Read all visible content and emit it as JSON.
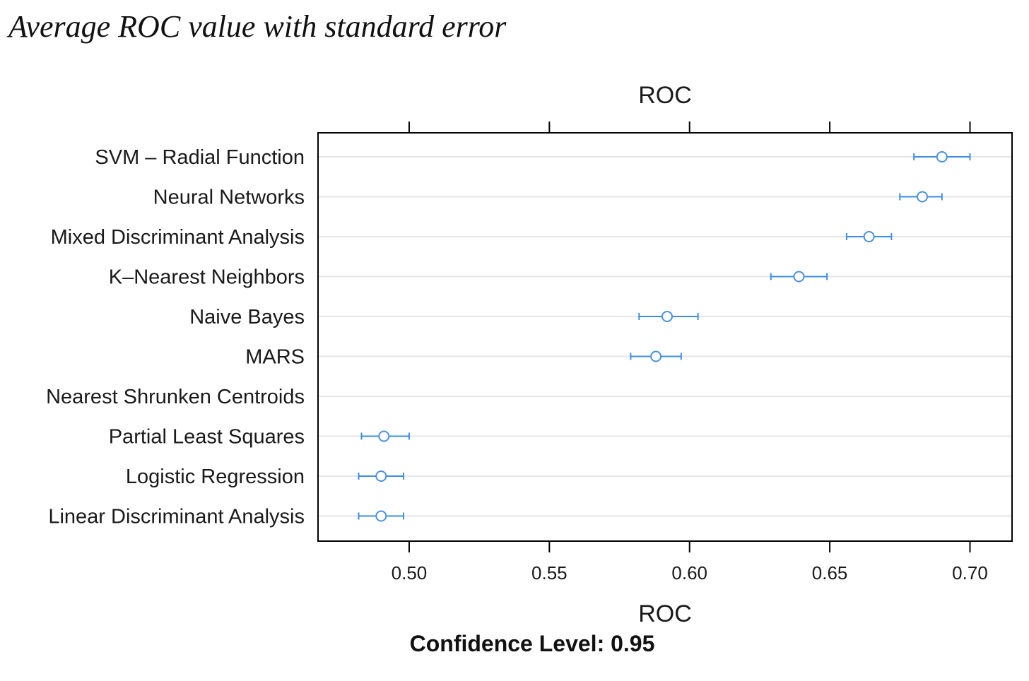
{
  "figure": {
    "title": "Average ROC value with standard error"
  },
  "chart_data": {
    "type": "dotplot",
    "title": "",
    "top_label": "ROC",
    "xlabel": "ROC",
    "footer": "Confidence Level: 0.95",
    "xlim": [
      0.4675,
      0.715
    ],
    "xticks": [
      0.5,
      0.55,
      0.6,
      0.65,
      0.7
    ],
    "xtick_labels": [
      "0.50",
      "0.55",
      "0.60",
      "0.65",
      "0.70"
    ],
    "grid": true,
    "colors": {
      "marker": "#4a90e2",
      "errorbar": "#3d8ee6",
      "grid": "#e6e6e6",
      "frame": "#000000"
    },
    "categories": [
      "SVM – Radial Function",
      "Neural Networks",
      "Mixed Discriminant Analysis",
      "K–Nearest Neighbors",
      "Naive Bayes",
      "MARS",
      "Nearest Shrunken Centroids",
      "Partial Least Squares",
      "Logistic Regression",
      "Linear Discriminant Analysis"
    ],
    "values": [
      0.69,
      0.683,
      0.664,
      0.639,
      0.592,
      0.588,
      null,
      0.491,
      0.49,
      0.49
    ],
    "lower": [
      0.68,
      0.675,
      0.656,
      0.629,
      0.582,
      0.579,
      null,
      0.483,
      0.482,
      0.482
    ],
    "upper": [
      0.7,
      0.69,
      0.672,
      0.649,
      0.603,
      0.597,
      null,
      0.5,
      0.498,
      0.498
    ]
  }
}
